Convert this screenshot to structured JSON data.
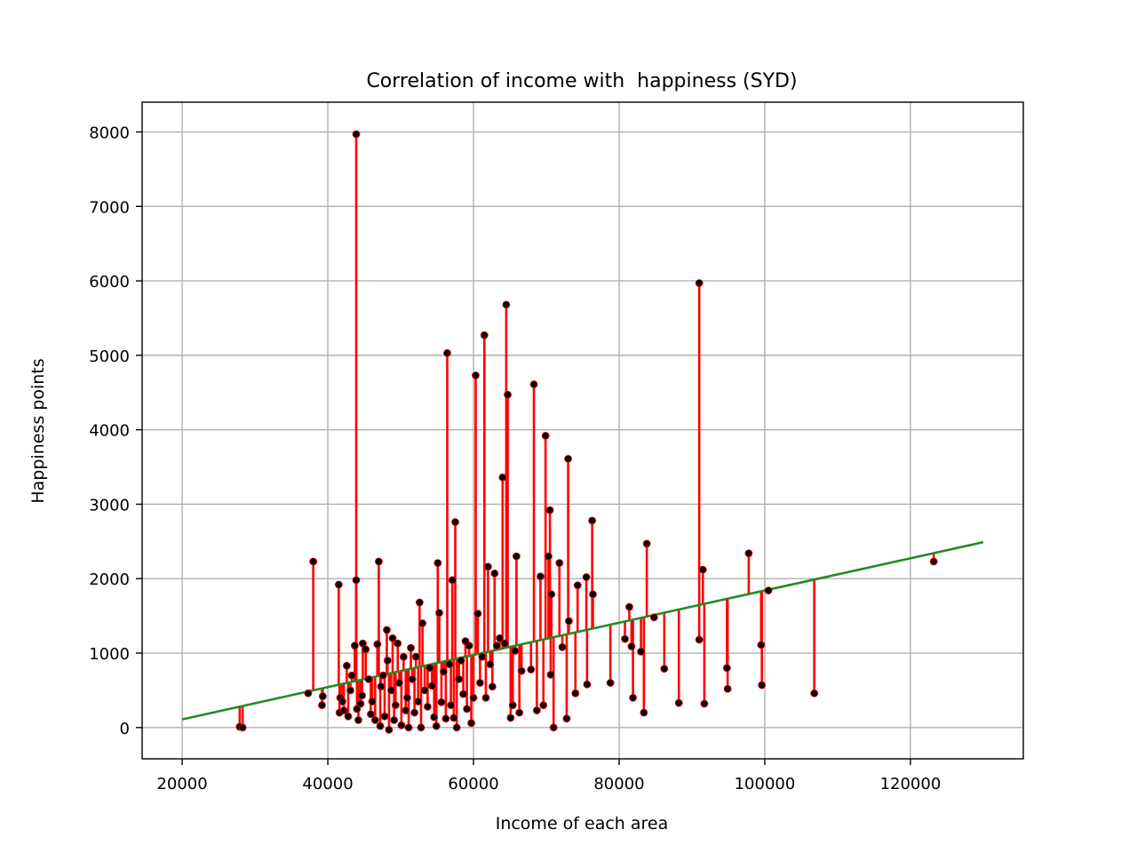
{
  "chart_data": {
    "type": "scatter",
    "title": "Correlation of income with  happiness (SYD)",
    "xlabel": "Income of each area",
    "ylabel": "Happiness points",
    "xlim": [
      14500,
      135500
    ],
    "ylim": [
      -420,
      8400
    ],
    "xticks": [
      20000,
      40000,
      60000,
      80000,
      100000,
      120000
    ],
    "yticks": [
      0,
      1000,
      2000,
      3000,
      4000,
      5000,
      6000,
      7000,
      8000
    ],
    "grid": true,
    "legend": "none",
    "colors": {
      "points": "#000000",
      "residuals": "#ff0000",
      "fit_line": "#228b22"
    },
    "fit_line": {
      "x": [
        20000,
        130000
      ],
      "y": [
        110,
        2490
      ]
    },
    "points": [
      [
        27900,
        10
      ],
      [
        28300,
        0
      ],
      [
        37300,
        460
      ],
      [
        38000,
        2230
      ],
      [
        39200,
        300
      ],
      [
        39300,
        420
      ],
      [
        41500,
        1920
      ],
      [
        41600,
        200
      ],
      [
        41700,
        400
      ],
      [
        42000,
        350
      ],
      [
        42200,
        230
      ],
      [
        42600,
        830
      ],
      [
        42800,
        150
      ],
      [
        43100,
        500
      ],
      [
        43300,
        700
      ],
      [
        43700,
        1100
      ],
      [
        43900,
        1980
      ],
      [
        43900,
        7970
      ],
      [
        44000,
        250
      ],
      [
        44200,
        100
      ],
      [
        44500,
        320
      ],
      [
        44700,
        430
      ],
      [
        44800,
        1130
      ],
      [
        45200,
        1050
      ],
      [
        45600,
        650
      ],
      [
        45900,
        180
      ],
      [
        46100,
        350
      ],
      [
        46500,
        100
      ],
      [
        46800,
        1120
      ],
      [
        47000,
        2230
      ],
      [
        47200,
        20
      ],
      [
        47300,
        550
      ],
      [
        47600,
        700
      ],
      [
        47800,
        150
      ],
      [
        48100,
        1310
      ],
      [
        48200,
        900
      ],
      [
        48400,
        -30
      ],
      [
        48700,
        500
      ],
      [
        48900,
        1200
      ],
      [
        49100,
        100
      ],
      [
        49300,
        300
      ],
      [
        49600,
        1130
      ],
      [
        49800,
        600
      ],
      [
        50100,
        30
      ],
      [
        50400,
        950
      ],
      [
        50700,
        230
      ],
      [
        50900,
        400
      ],
      [
        51100,
        0
      ],
      [
        51400,
        1070
      ],
      [
        51600,
        650
      ],
      [
        51900,
        200
      ],
      [
        52100,
        950
      ],
      [
        52400,
        350
      ],
      [
        52600,
        1680
      ],
      [
        52800,
        0
      ],
      [
        53000,
        1400
      ],
      [
        53300,
        500
      ],
      [
        53700,
        280
      ],
      [
        54000,
        800
      ],
      [
        54300,
        560
      ],
      [
        54600,
        140
      ],
      [
        54900,
        20
      ],
      [
        55100,
        2210
      ],
      [
        55300,
        1540
      ],
      [
        55600,
        340
      ],
      [
        55900,
        750
      ],
      [
        56200,
        120
      ],
      [
        56400,
        5030
      ],
      [
        56700,
        850
      ],
      [
        56900,
        300
      ],
      [
        57100,
        1980
      ],
      [
        57300,
        130
      ],
      [
        57500,
        2760
      ],
      [
        57700,
        0
      ],
      [
        58000,
        650
      ],
      [
        58300,
        900
      ],
      [
        58600,
        450
      ],
      [
        58900,
        1160
      ],
      [
        59100,
        250
      ],
      [
        59400,
        1100
      ],
      [
        59700,
        60
      ],
      [
        60000,
        400
      ],
      [
        60300,
        4730
      ],
      [
        60600,
        1530
      ],
      [
        60900,
        600
      ],
      [
        61200,
        950
      ],
      [
        61500,
        5270
      ],
      [
        61700,
        400
      ],
      [
        62000,
        2160
      ],
      [
        62300,
        850
      ],
      [
        62600,
        550
      ],
      [
        62900,
        2070
      ],
      [
        63200,
        1100
      ],
      [
        63600,
        1200
      ],
      [
        64000,
        3360
      ],
      [
        64300,
        1130
      ],
      [
        64500,
        5680
      ],
      [
        64700,
        4470
      ],
      [
        65100,
        130
      ],
      [
        65400,
        300
      ],
      [
        65700,
        1030
      ],
      [
        65900,
        2300
      ],
      [
        66300,
        200
      ],
      [
        66600,
        760
      ],
      [
        67900,
        780
      ],
      [
        68300,
        4610
      ],
      [
        68700,
        230
      ],
      [
        69200,
        2030
      ],
      [
        69600,
        300
      ],
      [
        69900,
        3920
      ],
      [
        70300,
        2300
      ],
      [
        70500,
        2920
      ],
      [
        70600,
        710
      ],
      [
        70700,
        1790
      ],
      [
        71000,
        0
      ],
      [
        71800,
        2210
      ],
      [
        72200,
        1080
      ],
      [
        72800,
        120
      ],
      [
        73000,
        3610
      ],
      [
        73100,
        1430
      ],
      [
        74000,
        460
      ],
      [
        74300,
        1910
      ],
      [
        75500,
        2020
      ],
      [
        75600,
        580
      ],
      [
        76300,
        2780
      ],
      [
        76400,
        1790
      ],
      [
        78800,
        600
      ],
      [
        80800,
        1190
      ],
      [
        81400,
        1620
      ],
      [
        81700,
        1090
      ],
      [
        81900,
        400
      ],
      [
        83000,
        1020
      ],
      [
        83400,
        200
      ],
      [
        83800,
        2470
      ],
      [
        84800,
        1480
      ],
      [
        86200,
        790
      ],
      [
        88200,
        330
      ],
      [
        91000,
        5970
      ],
      [
        91000,
        1180
      ],
      [
        91500,
        2120
      ],
      [
        91700,
        320
      ],
      [
        94800,
        800
      ],
      [
        94900,
        520
      ],
      [
        97800,
        2340
      ],
      [
        99500,
        1110
      ],
      [
        99600,
        570
      ],
      [
        100500,
        1840
      ],
      [
        106800,
        460
      ],
      [
        123200,
        2230
      ]
    ]
  }
}
